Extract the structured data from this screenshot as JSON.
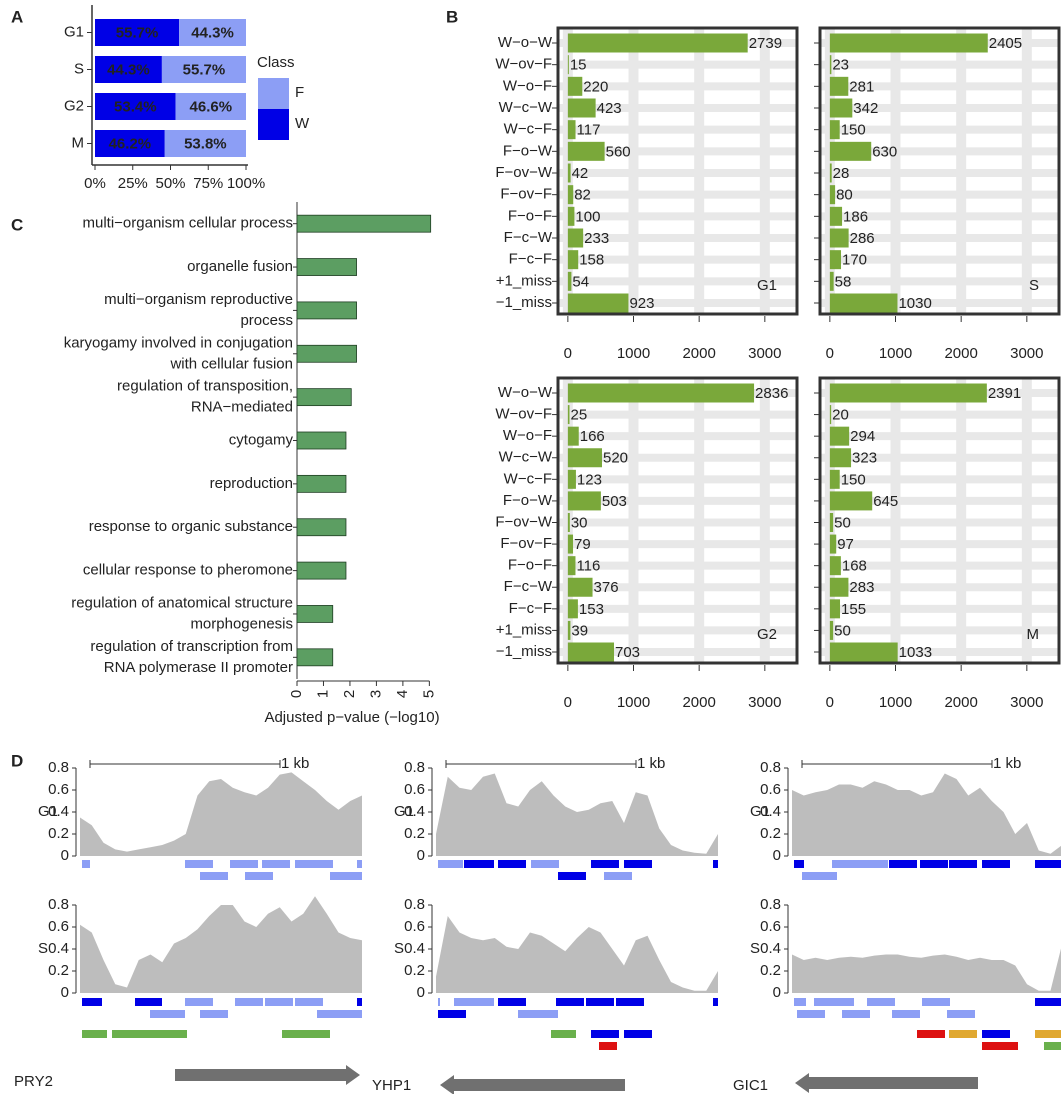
{
  "chart_data": [
    {
      "type": "stacked-bar",
      "panel_label": "A",
      "categories": [
        "G1",
        "S",
        "G2",
        "M"
      ],
      "series": [
        {
          "name": "W",
          "color": "#0000e6",
          "values": [
            55.7,
            44.3,
            53.4,
            46.2
          ],
          "value_labels": [
            "55.7%",
            "44.3%",
            "53.4%",
            "46.2%"
          ]
        },
        {
          "name": "F",
          "color": "#8c9ef5",
          "values": [
            44.3,
            55.7,
            46.6,
            53.8
          ],
          "value_labels": [
            "44.3%",
            "55.7%",
            "46.6%",
            "53.8%"
          ]
        }
      ],
      "legend_title": "Class",
      "xlim": [
        0,
        100
      ],
      "xticks": [
        {
          "value": 0,
          "label": "0%"
        },
        {
          "value": 25,
          "label": "25%"
        },
        {
          "value": 50,
          "label": "50%"
        },
        {
          "value": 75,
          "label": "75%"
        },
        {
          "value": 100,
          "label": "100%"
        }
      ]
    },
    {
      "type": "faceted-bar",
      "panel_label": "B",
      "categories": [
        "W−o−W",
        "W−ov−F",
        "W−o−F",
        "W−c−W",
        "W−c−F",
        "F−o−W",
        "F−ov−W",
        "F−ov−F",
        "F−o−F",
        "F−c−W",
        "F−c−F",
        "+1_miss",
        "−1_miss"
      ],
      "series": [
        {
          "name": "G1",
          "color": "#7aa83a",
          "values": [
            2739,
            15,
            220,
            423,
            117,
            560,
            42,
            82,
            100,
            233,
            158,
            54,
            923
          ]
        },
        {
          "name": "S",
          "color": "#7aa83a",
          "values": [
            2405,
            23,
            281,
            342,
            150,
            630,
            28,
            80,
            186,
            286,
            170,
            58,
            1030
          ]
        },
        {
          "name": "G2",
          "color": "#7aa83a",
          "values": [
            2836,
            25,
            166,
            520,
            123,
            503,
            30,
            79,
            116,
            376,
            153,
            39,
            703
          ]
        },
        {
          "name": "M",
          "color": "#7aa83a",
          "values": [
            2391,
            20,
            294,
            323,
            150,
            645,
            50,
            97,
            168,
            283,
            155,
            50,
            1033
          ]
        }
      ],
      "xlim": [
        -150,
        3490
      ],
      "xticks": [
        0,
        1000,
        2000,
        3000
      ],
      "grid": true
    },
    {
      "type": "bar",
      "panel_label": "C",
      "orientation": "horizontal",
      "color": "#5c9e62",
      "categories": [
        "multi−organism cellular process",
        "organelle fusion",
        "multi−organism reproductive\nprocess",
        "karyogamy involved in conjugation\nwith cellular fusion",
        "regulation of transposition,\nRNA−mediated",
        "cytogamy",
        "reproduction",
        "response to organic substance",
        "cellular response to pheromone",
        "regulation of anatomical structure\nmorphogenesis",
        "regulation of transcription from\nRNA polymerase II promoter"
      ],
      "values": [
        5.05,
        2.25,
        2.25,
        2.25,
        2.05,
        1.85,
        1.85,
        1.85,
        1.85,
        1.35,
        1.35
      ],
      "xlabel": "Adjusted p−value (−log10)",
      "xlim": [
        0,
        5.1
      ],
      "xticks": [
        0,
        1,
        2,
        3,
        4,
        5
      ]
    },
    {
      "type": "area",
      "panel_label": "D",
      "color": "#bdbdbd",
      "ylim": [
        0,
        0.9
      ],
      "yticks": [
        0,
        0.2,
        0.4,
        0.6,
        0.8
      ],
      "panels": [
        {
          "gene": "PRY2",
          "scale_label": "1 kb",
          "tracks": [
            {
              "name": "G1",
              "values": [
                0.35,
                0.28,
                0.12,
                0.06,
                0.04,
                0.06,
                0.08,
                0.1,
                0.14,
                0.2,
                0.55,
                0.68,
                0.7,
                0.62,
                0.58,
                0.55,
                0.62,
                0.74,
                0.76,
                0.68,
                0.6,
                0.5,
                0.42,
                0.5,
                0.55
              ]
            },
            {
              "name": "S",
              "values": [
                0.62,
                0.55,
                0.3,
                0.08,
                0.05,
                0.3,
                0.35,
                0.28,
                0.45,
                0.5,
                0.58,
                0.7,
                0.8,
                0.8,
                0.65,
                0.6,
                0.72,
                0.78,
                0.65,
                0.72,
                0.88,
                0.72,
                0.55,
                0.5,
                0.48
              ]
            }
          ]
        },
        {
          "gene": "YHP1",
          "scale_label": "1 kb",
          "tracks": [
            {
              "name": "G1",
              "values": [
                0.2,
                0.72,
                0.62,
                0.6,
                0.72,
                0.75,
                0.48,
                0.45,
                0.6,
                0.68,
                0.55,
                0.45,
                0.4,
                0.42,
                0.48,
                0.5,
                0.3,
                0.58,
                0.55,
                0.25,
                0.1,
                0.05,
                0.03,
                0.02,
                0.2
              ]
            },
            {
              "name": "S",
              "values": [
                0.15,
                0.7,
                0.55,
                0.5,
                0.48,
                0.5,
                0.42,
                0.4,
                0.55,
                0.52,
                0.45,
                0.38,
                0.5,
                0.6,
                0.55,
                0.4,
                0.25,
                0.48,
                0.52,
                0.3,
                0.1,
                0.05,
                0.02,
                0.02,
                0.2
              ]
            }
          ]
        },
        {
          "gene": "GIC1",
          "scale_label": "1 kb",
          "tracks": [
            {
              "name": "G1",
              "values": [
                0.6,
                0.55,
                0.58,
                0.6,
                0.65,
                0.65,
                0.62,
                0.68,
                0.65,
                0.6,
                0.6,
                0.55,
                0.58,
                0.75,
                0.7,
                0.55,
                0.62,
                0.5,
                0.4,
                0.2,
                0.3,
                0.05,
                0.02,
                0.1,
                0.6
              ]
            },
            {
              "name": "S",
              "values": [
                0.35,
                0.3,
                0.32,
                0.3,
                0.32,
                0.33,
                0.32,
                0.34,
                0.35,
                0.35,
                0.33,
                0.32,
                0.34,
                0.35,
                0.33,
                0.3,
                0.32,
                0.3,
                0.3,
                0.25,
                0.08,
                0.02,
                0.02,
                0.45,
                0.88
              ]
            }
          ]
        }
      ]
    }
  ]
}
